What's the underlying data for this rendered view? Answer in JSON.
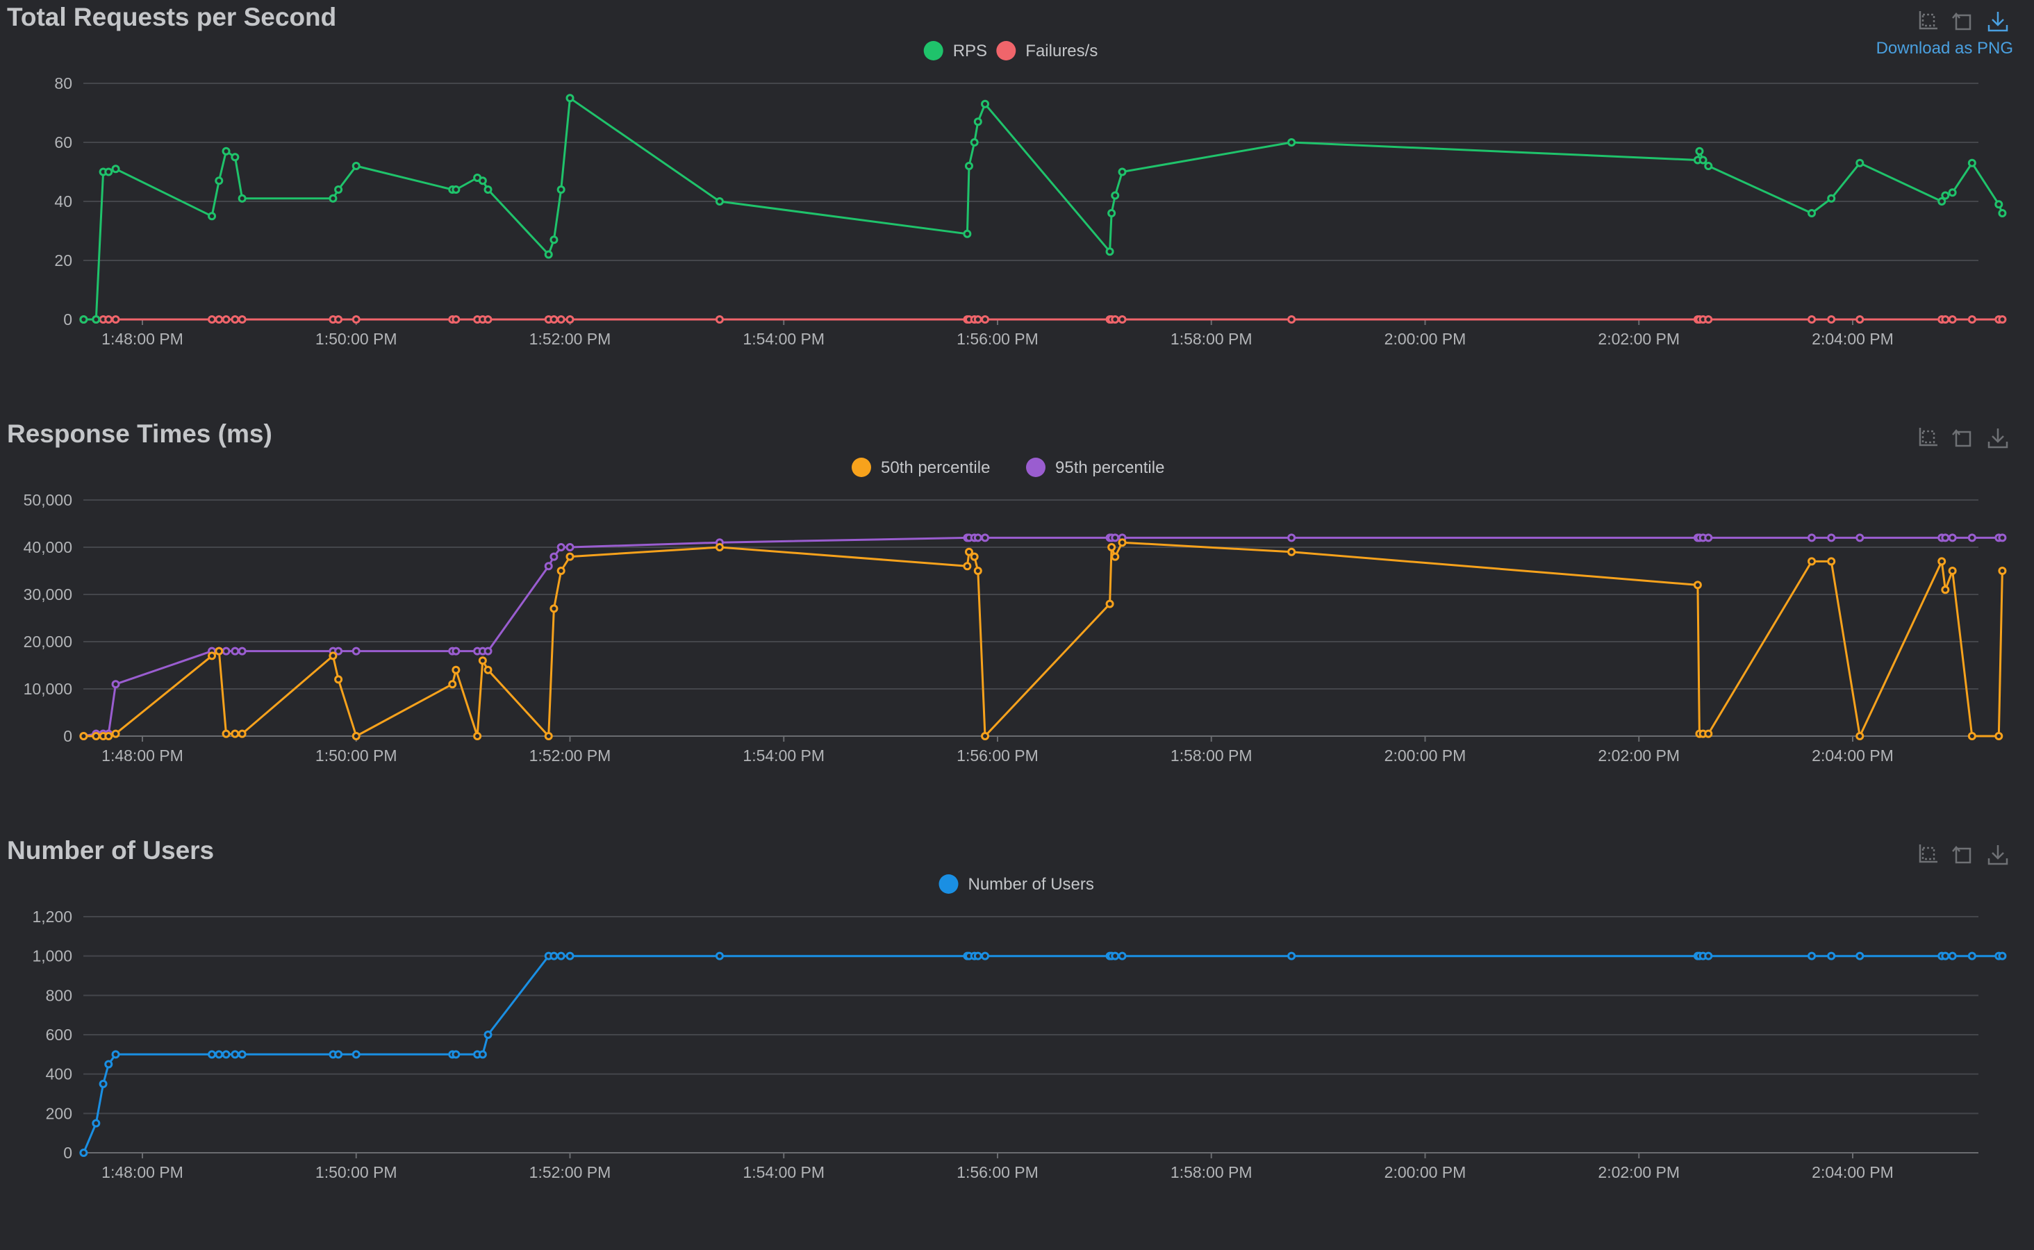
{
  "toolbox": {
    "zoom_icon": "zoom-select-icon",
    "reset_icon": "zoom-reset-icon",
    "download_icon": "download-icon",
    "download_caption": "Download as PNG"
  },
  "chart_data": [
    {
      "type": "line",
      "title": "Total Requests per Second",
      "xlabel": "",
      "ylabel": "",
      "x_tick_labels": [
        "1:48:00 PM",
        "1:50:00 PM",
        "1:52:00 PM",
        "1:54:00 PM",
        "1:56:00 PM",
        "1:58:00 PM",
        "2:00:00 PM",
        "2:02:00 PM",
        "2:04:00 PM"
      ],
      "y_tick_labels": [
        "0",
        "20",
        "40",
        "60",
        "80"
      ],
      "ylim": [
        0,
        80
      ],
      "y_ticks": [
        0,
        20,
        40,
        60,
        80
      ],
      "grid": true,
      "legend_position": "top-center",
      "x": [
        "1:47:27",
        "1:47:34",
        "1:47:38",
        "1:47:41",
        "1:47:45",
        "1:48:39",
        "1:48:43",
        "1:48:47",
        "1:48:52",
        "1:48:56",
        "1:49:47",
        "1:49:50",
        "1:50:00",
        "1:50:54",
        "1:50:56",
        "1:51:08",
        "1:51:11",
        "1:51:14",
        "1:51:48",
        "1:51:51",
        "1:51:55",
        "1:52:00",
        "1:53:24",
        "1:55:43",
        "1:55:44",
        "1:55:47",
        "1:55:49",
        "1:55:53",
        "1:57:03",
        "1:57:04",
        "1:57:06",
        "1:57:10",
        "1:58:45",
        "2:02:33",
        "2:02:34",
        "2:02:36",
        "2:02:39",
        "2:03:37",
        "2:03:48",
        "2:04:04",
        "2:04:50",
        "2:04:52",
        "2:04:56",
        "2:05:07",
        "2:05:22",
        "2:05:24"
      ],
      "series": [
        {
          "name": "RPS",
          "color": "#1fc36b",
          "values": [
            0,
            0,
            50,
            50,
            51,
            35,
            47,
            57,
            55,
            41,
            41,
            44,
            52,
            44,
            44,
            48,
            47,
            44,
            22,
            27,
            44,
            75,
            40,
            29,
            52,
            60,
            67,
            73,
            23,
            36,
            42,
            50,
            60,
            54,
            57,
            54,
            52,
            36,
            41,
            53,
            40,
            42,
            43,
            53,
            39,
            36
          ]
        },
        {
          "name": "Failures/s",
          "color": "#f0656b",
          "values": [
            0,
            0,
            0,
            0,
            0,
            0,
            0,
            0,
            0,
            0,
            0,
            0,
            0,
            0,
            0,
            0,
            0,
            0,
            0,
            0,
            0,
            0,
            0,
            0,
            0,
            0,
            0,
            0,
            0,
            0,
            0,
            0,
            0,
            0,
            0,
            0,
            0,
            0,
            0,
            0,
            0,
            0,
            0,
            0,
            0,
            0
          ]
        }
      ]
    },
    {
      "type": "line",
      "title": "Response Times (ms)",
      "xlabel": "",
      "ylabel": "",
      "x_tick_labels": [
        "1:48:00 PM",
        "1:50:00 PM",
        "1:52:00 PM",
        "1:54:00 PM",
        "1:56:00 PM",
        "1:58:00 PM",
        "2:00:00 PM",
        "2:02:00 PM",
        "2:04:00 PM"
      ],
      "y_tick_labels": [
        "0",
        "10,000",
        "20,000",
        "30,000",
        "40,000",
        "50,000"
      ],
      "ylim": [
        0,
        50000
      ],
      "y_ticks": [
        0,
        10000,
        20000,
        30000,
        40000,
        50000
      ],
      "grid": true,
      "legend_position": "top-center",
      "x": [
        "1:47:27",
        "1:47:34",
        "1:47:38",
        "1:47:41",
        "1:47:45",
        "1:48:39",
        "1:48:43",
        "1:48:47",
        "1:48:52",
        "1:48:56",
        "1:49:47",
        "1:49:50",
        "1:50:00",
        "1:50:54",
        "1:50:56",
        "1:51:08",
        "1:51:11",
        "1:51:14",
        "1:51:48",
        "1:51:51",
        "1:51:55",
        "1:52:00",
        "1:53:24",
        "1:55:43",
        "1:55:44",
        "1:55:47",
        "1:55:49",
        "1:55:53",
        "1:57:03",
        "1:57:04",
        "1:57:06",
        "1:57:10",
        "1:58:45",
        "2:02:33",
        "2:02:34",
        "2:02:36",
        "2:02:39",
        "2:03:37",
        "2:03:48",
        "2:04:04",
        "2:04:50",
        "2:04:52",
        "2:04:56",
        "2:05:07",
        "2:05:22",
        "2:05:24"
      ],
      "series": [
        {
          "name": "50th percentile",
          "color": "#f7a21c",
          "values": [
            0,
            0,
            0,
            0,
            500,
            17000,
            18000,
            500,
            500,
            500,
            17000,
            12000,
            0,
            11000,
            14000,
            0,
            16000,
            14000,
            0,
            27000,
            35000,
            38000,
            40000,
            36000,
            39000,
            38000,
            35000,
            0,
            28000,
            40000,
            38000,
            41000,
            39000,
            32000,
            500,
            500,
            500,
            37000,
            37000,
            0,
            37000,
            31000,
            35000,
            0,
            0,
            35000
          ]
        },
        {
          "name": "95th percentile",
          "color": "#9a5dd0",
          "values": [
            0,
            500,
            500,
            500,
            11000,
            18000,
            18000,
            18000,
            18000,
            18000,
            18000,
            18000,
            18000,
            18000,
            18000,
            18000,
            18000,
            18000,
            36000,
            38000,
            40000,
            40000,
            41000,
            42000,
            42000,
            42000,
            42000,
            42000,
            42000,
            42000,
            42000,
            42000,
            42000,
            42000,
            42000,
            42000,
            42000,
            42000,
            42000,
            42000,
            42000,
            42000,
            42000,
            42000,
            42000,
            42000
          ]
        }
      ]
    },
    {
      "type": "line",
      "title": "Number of Users",
      "xlabel": "",
      "ylabel": "",
      "x_tick_labels": [
        "1:48:00 PM",
        "1:50:00 PM",
        "1:52:00 PM",
        "1:54:00 PM",
        "1:56:00 PM",
        "1:58:00 PM",
        "2:00:00 PM",
        "2:02:00 PM",
        "2:04:00 PM"
      ],
      "y_tick_labels": [
        "0",
        "200",
        "400",
        "600",
        "800",
        "1,000",
        "1,200"
      ],
      "ylim": [
        0,
        1200
      ],
      "y_ticks": [
        0,
        200,
        400,
        600,
        800,
        1000,
        1200
      ],
      "grid": true,
      "legend_position": "top-center",
      "x": [
        "1:47:27",
        "1:47:34",
        "1:47:38",
        "1:47:41",
        "1:47:45",
        "1:48:39",
        "1:48:43",
        "1:48:47",
        "1:48:52",
        "1:48:56",
        "1:49:47",
        "1:49:50",
        "1:50:00",
        "1:50:54",
        "1:50:56",
        "1:51:08",
        "1:51:11",
        "1:51:14",
        "1:51:48",
        "1:51:51",
        "1:51:55",
        "1:52:00",
        "1:53:24",
        "1:55:43",
        "1:55:44",
        "1:55:47",
        "1:55:49",
        "1:55:53",
        "1:57:03",
        "1:57:04",
        "1:57:06",
        "1:57:10",
        "1:58:45",
        "2:02:33",
        "2:02:34",
        "2:02:36",
        "2:02:39",
        "2:03:37",
        "2:03:48",
        "2:04:04",
        "2:04:50",
        "2:04:52",
        "2:04:56",
        "2:05:07",
        "2:05:22",
        "2:05:24"
      ],
      "series": [
        {
          "name": "Number of Users",
          "color": "#1a8fe3",
          "values": [
            0,
            150,
            350,
            450,
            500,
            500,
            500,
            500,
            500,
            500,
            500,
            500,
            500,
            500,
            500,
            500,
            500,
            600,
            1000,
            1000,
            1000,
            1000,
            1000,
            1000,
            1000,
            1000,
            1000,
            1000,
            1000,
            1000,
            1000,
            1000,
            1000,
            1000,
            1000,
            1000,
            1000,
            1000,
            1000,
            1000,
            1000,
            1000,
            1000,
            1000,
            1000,
            1000
          ]
        }
      ]
    }
  ]
}
